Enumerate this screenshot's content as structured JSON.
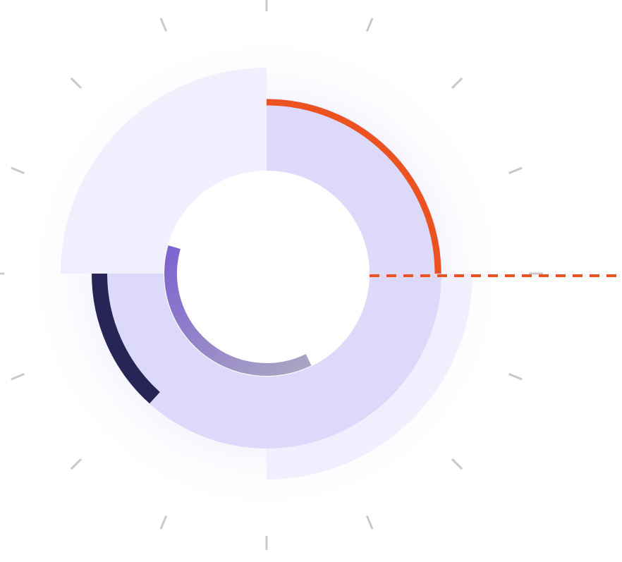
{
  "diagram": {
    "kind": "radial-segment-illustration",
    "tick_count": 16,
    "segments": [
      {
        "id": "outer-sector-top-left",
        "start_deg": 270,
        "end_deg": 360,
        "color": "#f1effd"
      },
      {
        "id": "outer-sector-bottom-right",
        "start_deg": 0,
        "end_deg": 90,
        "color": "#f1effd"
      },
      {
        "id": "inner-sector-top-right",
        "start_deg": 270,
        "end_deg": 360,
        "color": "#ddd9fa"
      },
      {
        "id": "inner-sector-bottom",
        "start_deg": 0,
        "end_deg": 180,
        "color": "#ddd9fa"
      }
    ],
    "arcs": [
      {
        "id": "orange-arc",
        "start_deg": 270,
        "end_deg": 360,
        "color": "#ec5120"
      },
      {
        "id": "navy-arc",
        "start_deg": 180,
        "end_deg": 132,
        "color": "#272456"
      },
      {
        "id": "purple-arc",
        "start_deg": 196,
        "end_deg": 64,
        "color_start": "#8068cd",
        "color_end": "#a8a1c4"
      }
    ],
    "connector": {
      "id": "orange-dashed-connector",
      "color": "#ec5120",
      "style": "dashed"
    }
  },
  "colors": {
    "tick": "#c9c9c9",
    "glow": "#e9e6fb",
    "hole": "#ffffff"
  }
}
